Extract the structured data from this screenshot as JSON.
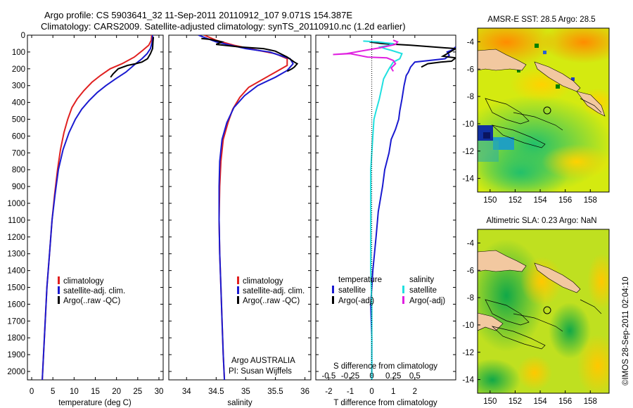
{
  "header": {
    "line1": "Argo profile: CS 5903641_32 11-Sep-2011 20110912_107 9.071S 154.387E",
    "line2": "Climatology: CARS2009. Satellite-adjusted climatology: synTS_20110910.nc (1.2d earlier)"
  },
  "watermark": "©IMOS 28-Sep-2011 02:04:10",
  "colors": {
    "climatology": "#e02020",
    "satellite": "#1a1ad0",
    "argo": "#000000",
    "sat_salinity": "#20e0e0",
    "argo_salinity": "#e020e0"
  },
  "chart_data": [
    {
      "type": "line",
      "xlabel": "temperature (deg C)",
      "ylabel": "",
      "xlim": [
        -1,
        31
      ],
      "ylim": [
        2050,
        0
      ],
      "xticks": [
        0,
        5,
        10,
        15,
        20,
        25,
        30
      ],
      "yticks": [
        0,
        100,
        200,
        300,
        400,
        500,
        600,
        700,
        800,
        900,
        1000,
        1100,
        1200,
        1300,
        1400,
        1500,
        1600,
        1700,
        1800,
        1900,
        2000
      ],
      "legend": [
        "climatology",
        "satellite-adj. clim.",
        "Argo(..raw -QC)"
      ],
      "series": [
        {
          "name": "climatology",
          "color": "#e02020",
          "points": [
            [
              28.3,
              0
            ],
            [
              28.2,
              30
            ],
            [
              27.6,
              60
            ],
            [
              26.2,
              90
            ],
            [
              24.2,
              130
            ],
            [
              21.3,
              170
            ],
            [
              18.5,
              200
            ],
            [
              16.2,
              240
            ],
            [
              14.2,
              280
            ],
            [
              12.3,
              330
            ],
            [
              10.7,
              380
            ],
            [
              9.5,
              430
            ],
            [
              8.5,
              500
            ],
            [
              7.6,
              580
            ],
            [
              6.8,
              680
            ],
            [
              6.1,
              800
            ],
            [
              5.4,
              950
            ],
            [
              4.8,
              1100
            ],
            [
              4.2,
              1300
            ],
            [
              3.6,
              1500
            ],
            [
              3.2,
              1700
            ],
            [
              2.8,
              1900
            ],
            [
              2.5,
              2050
            ]
          ]
        },
        {
          "name": "satellite-adj. clim.",
          "color": "#1a1ad0",
          "points": [
            [
              28.5,
              0
            ],
            [
              28.4,
              40
            ],
            [
              28.0,
              80
            ],
            [
              27.2,
              110
            ],
            [
              26.0,
              140
            ],
            [
              24.5,
              170
            ],
            [
              22.2,
              220
            ],
            [
              19.8,
              260
            ],
            [
              17.5,
              300
            ],
            [
              15.5,
              340
            ],
            [
              13.5,
              390
            ],
            [
              11.8,
              440
            ],
            [
              10.3,
              500
            ],
            [
              8.8,
              580
            ],
            [
              7.4,
              680
            ],
            [
              6.3,
              800
            ],
            [
              5.5,
              950
            ],
            [
              4.8,
              1100
            ],
            [
              4.2,
              1300
            ],
            [
              3.6,
              1500
            ],
            [
              3.2,
              1700
            ],
            [
              2.8,
              1900
            ],
            [
              2.5,
              2050
            ]
          ]
        },
        {
          "name": "Argo(..raw -QC)",
          "color": "#000000",
          "points": [
            [
              28.7,
              10
            ],
            [
              28.6,
              40
            ],
            [
              28.5,
              80
            ],
            [
              28.0,
              110
            ],
            [
              27.3,
              140
            ],
            [
              26.0,
              160
            ],
            [
              24.5,
              170
            ],
            [
              22.6,
              180
            ],
            [
              20.4,
              200
            ],
            [
              19.2,
              230
            ],
            [
              18.6,
              250
            ]
          ]
        }
      ]
    },
    {
      "type": "line",
      "xlabel": "salinity",
      "ylabel": "",
      "xlim": [
        33.7,
        36.1
      ],
      "ylim": [
        2050,
        0
      ],
      "xticks": [
        34,
        34.5,
        35,
        35.5,
        36
      ],
      "legend": [
        "climatology",
        "satellite-adj. clim.",
        "Argo(..raw -QC)"
      ],
      "annotations": [
        "Argo AUSTRALIA",
        "PI: Susan Wijffels"
      ],
      "series": [
        {
          "name": "climatology",
          "color": "#e02020",
          "points": [
            [
              34.3,
              0
            ],
            [
              34.5,
              30
            ],
            [
              34.8,
              60
            ],
            [
              35.2,
              90
            ],
            [
              35.5,
              110
            ],
            [
              35.7,
              140
            ],
            [
              35.7,
              180
            ],
            [
              35.5,
              220
            ],
            [
              35.3,
              260
            ],
            [
              35.05,
              310
            ],
            [
              34.9,
              370
            ],
            [
              34.78,
              440
            ],
            [
              34.7,
              520
            ],
            [
              34.62,
              620
            ],
            [
              34.58,
              750
            ],
            [
              34.56,
              900
            ],
            [
              34.55,
              1100
            ],
            [
              34.56,
              1300
            ],
            [
              34.58,
              1500
            ],
            [
              34.6,
              1700
            ],
            [
              34.62,
              1900
            ],
            [
              34.64,
              2050
            ]
          ]
        },
        {
          "name": "satellite-adj. clim.",
          "color": "#1a1ad0",
          "points": [
            [
              34.2,
              0
            ],
            [
              34.5,
              40
            ],
            [
              35.0,
              80
            ],
            [
              35.4,
              100
            ],
            [
              35.75,
              140
            ],
            [
              35.8,
              170
            ],
            [
              35.7,
              210
            ],
            [
              35.5,
              250
            ],
            [
              35.2,
              300
            ],
            [
              34.98,
              360
            ],
            [
              34.8,
              430
            ],
            [
              34.68,
              520
            ],
            [
              34.6,
              620
            ],
            [
              34.56,
              750
            ],
            [
              34.55,
              900
            ],
            [
              34.55,
              1100
            ],
            [
              34.56,
              1300
            ],
            [
              34.58,
              1500
            ],
            [
              34.6,
              1700
            ],
            [
              34.62,
              1900
            ],
            [
              34.64,
              2050
            ]
          ]
        },
        {
          "name": "Argo(..raw -QC)",
          "color": "#000000",
          "points": [
            [
              34.25,
              20
            ],
            [
              34.4,
              25
            ],
            [
              34.6,
              40
            ],
            [
              34.5,
              55
            ],
            [
              34.9,
              70
            ],
            [
              35.3,
              80
            ],
            [
              35.5,
              95
            ],
            [
              35.7,
              130
            ],
            [
              35.82,
              160
            ],
            [
              35.87,
              170
            ],
            [
              35.82,
              190
            ],
            [
              35.78,
              200
            ],
            [
              35.7,
              215
            ]
          ]
        }
      ]
    },
    {
      "type": "line",
      "xlabel": "T difference from climatology",
      "ylabel": "",
      "xlim": [
        -2.6,
        3.9
      ],
      "ylim": [
        2050,
        0
      ],
      "xticks": [
        -2,
        -1,
        0,
        1,
        2
      ],
      "title": "S difference from climatology",
      "secondary_ticks": [
        "-0.5",
        "-0.25",
        "0",
        "0.25",
        "0.5"
      ],
      "legend_headers": [
        "temperature",
        "salinity"
      ],
      "legend": [
        "satellite",
        "Argo(-adj)",
        "satellite",
        "Argo(-adj)"
      ],
      "series": [
        {
          "name": "temperature satellite",
          "color": "#1a1ad0",
          "points": [
            [
              3.9,
              70
            ],
            [
              3.7,
              90
            ],
            [
              3.5,
              100
            ],
            [
              3.6,
              120
            ],
            [
              3.5,
              130
            ],
            [
              3.4,
              140
            ],
            [
              2.0,
              160
            ],
            [
              1.8,
              190
            ],
            [
              1.7,
              220
            ],
            [
              1.6,
              240
            ],
            [
              1.5,
              300
            ],
            [
              1.4,
              380
            ],
            [
              1.3,
              450
            ],
            [
              1.25,
              500
            ],
            [
              1.1,
              560
            ],
            [
              0.9,
              620
            ],
            [
              0.8,
              700
            ],
            [
              0.6,
              800
            ],
            [
              0.5,
              900
            ],
            [
              0.3,
              1050
            ],
            [
              0.2,
              1200
            ],
            [
              0.05,
              1400
            ],
            [
              -0.05,
              1600
            ],
            [
              0,
              1800
            ],
            [
              0,
              2050
            ]
          ]
        },
        {
          "name": "temperature Argo(-adj)",
          "color": "#000000",
          "points": [
            [
              -0.1,
              40
            ],
            [
              0.5,
              50
            ],
            [
              1.8,
              60
            ],
            [
              3.9,
              80
            ],
            [
              3.5,
              110
            ],
            [
              3.3,
              125
            ],
            [
              3.9,
              135
            ],
            [
              3.7,
              155
            ],
            [
              3.2,
              160
            ],
            [
              2.6,
              170
            ],
            [
              2.3,
              190
            ]
          ]
        },
        {
          "name": "salinity satellite",
          "color": "#20e0e0",
          "points": [
            [
              -0.4,
              35
            ],
            [
              0.3,
              40
            ],
            [
              0.6,
              45
            ],
            [
              1.0,
              50
            ],
            [
              0.8,
              60
            ],
            [
              0.4,
              70
            ],
            [
              0.6,
              80
            ],
            [
              0.9,
              90
            ],
            [
              1.4,
              110
            ],
            [
              1.3,
              140
            ],
            [
              1.0,
              160
            ],
            [
              0.8,
              200
            ],
            [
              0.55,
              260
            ],
            [
              0.45,
              320
            ],
            [
              0.35,
              380
            ],
            [
              0.2,
              450
            ],
            [
              0.1,
              500
            ],
            [
              0.05,
              600
            ],
            [
              -0.05,
              800
            ],
            [
              -0.05,
              1100
            ],
            [
              -0.05,
              1400
            ],
            [
              0,
              1600
            ],
            [
              0,
              2050
            ]
          ]
        },
        {
          "name": "salinity Argo(-adj)",
          "color": "#e020e0",
          "points": [
            [
              1.0,
              30
            ],
            [
              1.2,
              40
            ],
            [
              1.1,
              55
            ],
            [
              0.4,
              75
            ],
            [
              -1.2,
              110
            ],
            [
              -1.8,
              115
            ],
            [
              -1.0,
              110
            ],
            [
              -0.6,
              120
            ],
            [
              -0.2,
              130
            ],
            [
              0.7,
              135
            ],
            [
              1.0,
              150
            ],
            [
              1.1,
              170
            ],
            [
              0.9,
              195
            ],
            [
              1.0,
              215
            ]
          ]
        }
      ]
    },
    {
      "type": "heatmap",
      "title": "AMSR-E SST: 28.5 Argo: 28.5",
      "xticks": [
        150,
        152,
        154,
        156,
        158
      ],
      "yticks": [
        -4,
        -6,
        -8,
        -10,
        -12,
        -14
      ],
      "xlim": [
        149,
        159.5
      ],
      "ylim": [
        -15,
        -3
      ],
      "marker": {
        "lon": 154.4,
        "lat": -9.1
      }
    },
    {
      "type": "heatmap",
      "title": "Altimetric SLA: 0.23 Argo: NaN",
      "xticks": [
        150,
        152,
        154,
        156,
        158
      ],
      "yticks": [
        -4,
        -6,
        -8,
        -10,
        -12,
        -14
      ],
      "xlim": [
        149,
        159.5
      ],
      "ylim": [
        -15,
        -3
      ],
      "marker": {
        "lon": 154.4,
        "lat": -9.1
      }
    }
  ]
}
